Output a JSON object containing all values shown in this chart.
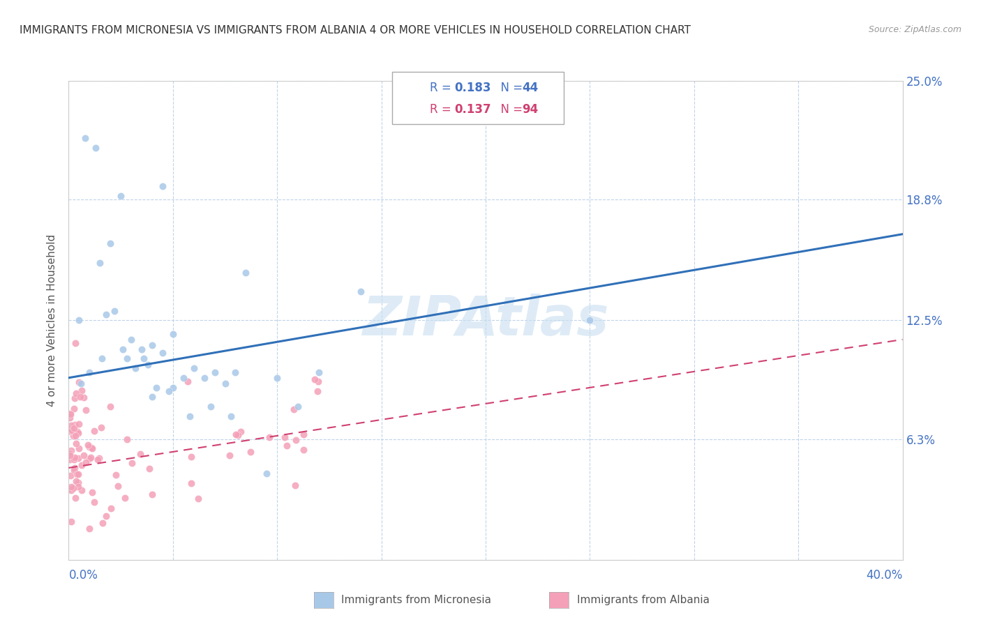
{
  "title": "IMMIGRANTS FROM MICRONESIA VS IMMIGRANTS FROM ALBANIA 4 OR MORE VEHICLES IN HOUSEHOLD CORRELATION CHART",
  "source": "Source: ZipAtlas.com",
  "ylabel_label": "4 or more Vehicles in Household",
  "legend_r_mic": "R = 0.183",
  "legend_n_mic": "N = 44",
  "legend_r_alb": "R = 0.137",
  "legend_n_alb": "N = 94",
  "micronesia_color": "#a8c8e8",
  "albania_color": "#f4a0b8",
  "line_micronesia_color": "#3070b8",
  "line_albania_color": "#d04070",
  "watermark_color": "#c8dff0",
  "xlim": [
    0.0,
    40.0
  ],
  "ylim": [
    0.0,
    25.0
  ],
  "figsize": [
    14.06,
    8.92
  ],
  "dpi": 100,
  "mic_line_x0": 0.0,
  "mic_line_y0": 9.5,
  "mic_line_x1": 40.0,
  "mic_line_y1": 17.0,
  "alb_line_x0": 0.0,
  "alb_line_y0": 4.8,
  "alb_line_x1": 40.0,
  "alb_line_y1": 11.5
}
